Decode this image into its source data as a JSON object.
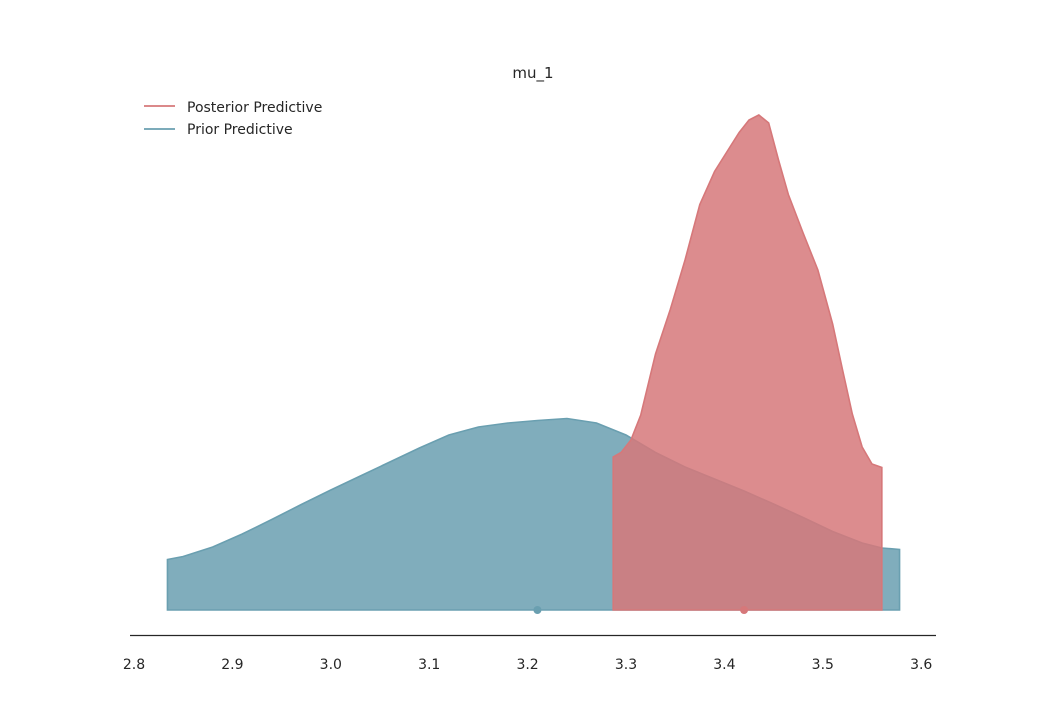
{
  "chart_data": {
    "type": "area",
    "title": "mu_1",
    "xlabel": "",
    "ylabel": "",
    "xlim": [
      2.8,
      3.61
    ],
    "ylim": [
      0,
      1.0
    ],
    "x_ticks": [
      "2.8",
      "2.9",
      "3.0",
      "3.1",
      "3.2",
      "3.3",
      "3.4",
      "3.5",
      "3.6"
    ],
    "grid": false,
    "legend_position": "top-left",
    "series": [
      {
        "name": "Prior Predictive",
        "color": "#6a9fb0",
        "point_estimate": 3.21,
        "x": [
          2.834,
          2.85,
          2.88,
          2.91,
          2.94,
          2.97,
          3.0,
          3.03,
          3.06,
          3.09,
          3.12,
          3.15,
          3.18,
          3.21,
          3.24,
          3.27,
          3.3,
          3.33,
          3.36,
          3.39,
          3.42,
          3.45,
          3.48,
          3.51,
          3.54,
          3.56,
          3.578
        ],
        "y": [
          0.101,
          0.107,
          0.126,
          0.152,
          0.181,
          0.211,
          0.24,
          0.268,
          0.296,
          0.324,
          0.35,
          0.366,
          0.374,
          0.379,
          0.383,
          0.374,
          0.35,
          0.315,
          0.286,
          0.262,
          0.238,
          0.212,
          0.185,
          0.157,
          0.134,
          0.124,
          0.121
        ]
      },
      {
        "name": "Posterior Predictive",
        "color": "#d6787a",
        "point_estimate": 3.42,
        "x": [
          3.287,
          3.295,
          3.305,
          3.315,
          3.33,
          3.345,
          3.36,
          3.375,
          3.39,
          3.405,
          3.415,
          3.425,
          3.435,
          3.445,
          3.455,
          3.465,
          3.48,
          3.495,
          3.51,
          3.52,
          3.53,
          3.54,
          3.55,
          3.56
        ],
        "y": [
          0.306,
          0.315,
          0.34,
          0.39,
          0.512,
          0.601,
          0.7,
          0.811,
          0.877,
          0.924,
          0.955,
          0.98,
          0.99,
          0.974,
          0.9,
          0.831,
          0.754,
          0.68,
          0.572,
          0.481,
          0.392,
          0.326,
          0.292,
          0.285
        ]
      }
    ]
  }
}
